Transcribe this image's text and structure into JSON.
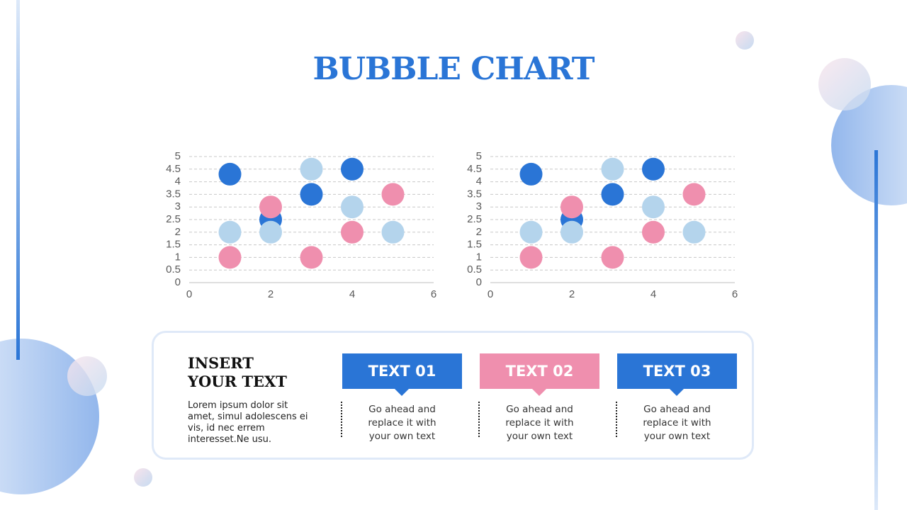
{
  "title": "BUBBLE CHART",
  "chart_data": [
    {
      "type": "bubble",
      "grid": true,
      "xlim": [
        0,
        6
      ],
      "xticks": [
        0,
        2,
        4,
        6
      ],
      "ylim": [
        0,
        5
      ],
      "yticks": [
        0,
        0.5,
        1,
        1.5,
        2,
        2.5,
        3,
        3.5,
        4,
        4.5,
        5
      ],
      "series": [
        {
          "color": "#2a75d6",
          "x": [
            1,
            2,
            3,
            4
          ],
          "values": [
            4.3,
            2.5,
            3.5,
            4.5
          ]
        },
        {
          "color": "#b4d4ec",
          "x": [
            1,
            2,
            3,
            4,
            5
          ],
          "values": [
            2,
            2,
            4.5,
            3,
            2
          ]
        },
        {
          "color": "#ef8fae",
          "x": [
            1,
            2,
            3,
            4,
            5
          ],
          "values": [
            1,
            3,
            1,
            2,
            3.5
          ]
        }
      ]
    },
    {
      "type": "bubble",
      "grid": true,
      "xlim": [
        0,
        6
      ],
      "xticks": [
        0,
        2,
        4,
        6
      ],
      "ylim": [
        0,
        5
      ],
      "yticks": [
        0,
        0.5,
        1,
        1.5,
        2,
        2.5,
        3,
        3.5,
        4,
        4.5,
        5
      ],
      "series": [
        {
          "color": "#2a75d6",
          "x": [
            1,
            2,
            3,
            4
          ],
          "values": [
            4.3,
            2.5,
            3.5,
            4.5
          ]
        },
        {
          "color": "#b4d4ec",
          "x": [
            1,
            2,
            3,
            4,
            5
          ],
          "values": [
            2,
            2,
            4.5,
            3,
            2
          ]
        },
        {
          "color": "#ef8fae",
          "x": [
            1,
            2,
            3,
            4,
            5
          ],
          "values": [
            1,
            3,
            1,
            2,
            3.5
          ]
        }
      ]
    }
  ],
  "panel": {
    "heading": [
      "INSERT",
      "YOUR TEXT"
    ],
    "body": "Lorem ipsum dolor sit amet, simul adolescens ei vis, id nec errem interesset.Ne usu.",
    "items": [
      {
        "label": "TEXT 01",
        "color": "#2a75d6",
        "text": "Go ahead and replace it with your own text"
      },
      {
        "label": "TEXT 02",
        "color": "#ef8fae",
        "text": "Go ahead and replace it with your own text"
      },
      {
        "label": "TEXT 03",
        "color": "#2a75d6",
        "text": "Go ahead and replace it with your own text"
      }
    ]
  }
}
